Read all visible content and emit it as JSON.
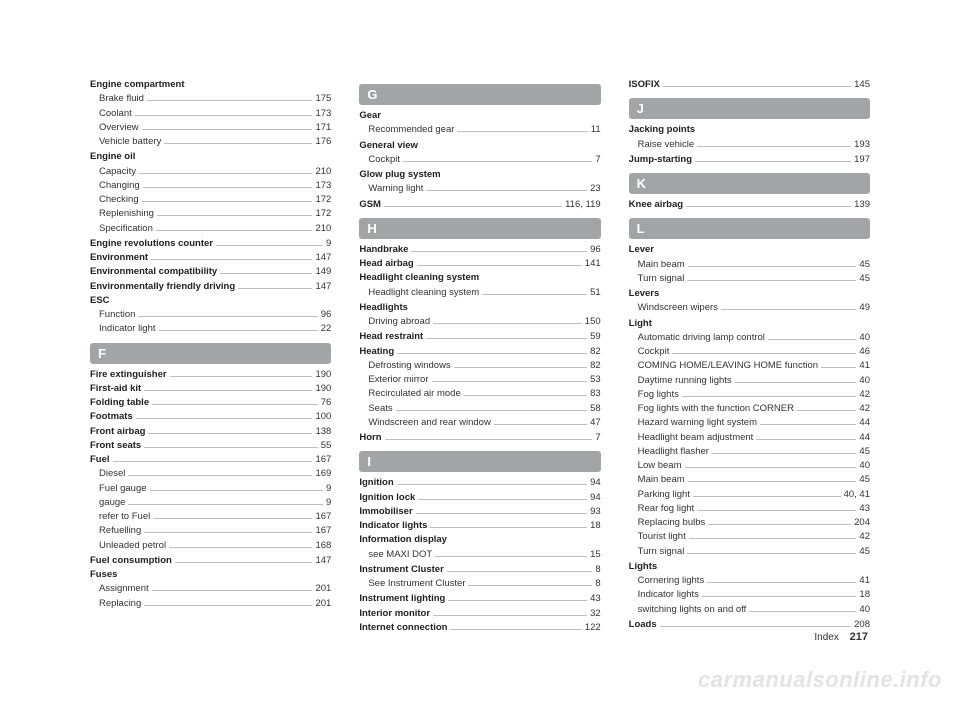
{
  "footer": {
    "label": "Index",
    "page": "217"
  },
  "watermark": "carmanualsonline.info",
  "columns": [
    [
      {
        "type": "group",
        "title": "Engine compartment",
        "items": [
          {
            "label": "Brake fluid",
            "page": "175"
          },
          {
            "label": "Coolant",
            "page": "173"
          },
          {
            "label": "Overview",
            "page": "171"
          },
          {
            "label": "Vehicle battery",
            "page": "176"
          }
        ]
      },
      {
        "type": "group",
        "title": "Engine oil",
        "items": [
          {
            "label": "Capacity",
            "page": "210"
          },
          {
            "label": "Changing",
            "page": "173"
          },
          {
            "label": "Checking",
            "page": "172"
          },
          {
            "label": "Replenishing",
            "page": "172"
          },
          {
            "label": "Specification",
            "page": "210"
          }
        ]
      },
      {
        "type": "entry",
        "bold": true,
        "label": "Engine revolutions counter",
        "page": "9"
      },
      {
        "type": "entry",
        "bold": true,
        "label": "Environment",
        "page": "147"
      },
      {
        "type": "entry",
        "bold": true,
        "label": "Environmental compatibility",
        "page": "149"
      },
      {
        "type": "entry",
        "bold": true,
        "label": "Environmentally friendly driving",
        "page": "147"
      },
      {
        "type": "group",
        "title": "ESC",
        "items": [
          {
            "label": "Function",
            "page": "96"
          },
          {
            "label": "Indicator light",
            "page": "22"
          }
        ]
      },
      {
        "type": "head",
        "label": "F"
      },
      {
        "type": "entry",
        "bold": true,
        "label": "Fire extinguisher",
        "page": "190"
      },
      {
        "type": "entry",
        "bold": true,
        "label": "First-aid kit",
        "page": "190"
      },
      {
        "type": "entry",
        "bold": true,
        "label": "Folding table",
        "page": "76"
      },
      {
        "type": "entry",
        "bold": true,
        "label": "Footmats",
        "page": "100"
      },
      {
        "type": "entry",
        "bold": true,
        "label": "Front airbag",
        "page": "138"
      },
      {
        "type": "entry",
        "bold": true,
        "label": "Front seats",
        "page": "55"
      },
      {
        "type": "group",
        "titleEntry": {
          "label": "Fuel",
          "page": "167"
        },
        "items": [
          {
            "label": "Diesel",
            "page": "169"
          },
          {
            "label": "Fuel gauge",
            "page": "9"
          },
          {
            "label": "gauge",
            "page": "9"
          },
          {
            "label": "refer to Fuel",
            "page": "167"
          },
          {
            "label": "Refuelling",
            "page": "167"
          },
          {
            "label": "Unleaded petrol",
            "page": "168"
          }
        ]
      },
      {
        "type": "entry",
        "bold": true,
        "label": "Fuel consumption",
        "page": "147"
      },
      {
        "type": "group",
        "title": "Fuses",
        "items": [
          {
            "label": "Assignment",
            "page": "201"
          },
          {
            "label": "Replacing",
            "page": "201"
          }
        ]
      }
    ],
    [
      {
        "type": "head",
        "label": "G"
      },
      {
        "type": "group",
        "title": "Gear",
        "items": [
          {
            "label": "Recommended gear",
            "page": "11"
          }
        ]
      },
      {
        "type": "group",
        "title": "General view",
        "items": [
          {
            "label": "Cockpit",
            "page": "7"
          }
        ]
      },
      {
        "type": "group",
        "title": "Glow plug system",
        "items": [
          {
            "label": "Warning light",
            "page": "23"
          }
        ]
      },
      {
        "type": "entry",
        "bold": true,
        "label": "GSM",
        "page": "116, 119"
      },
      {
        "type": "head",
        "label": "H"
      },
      {
        "type": "entry",
        "bold": true,
        "label": "Handbrake",
        "page": "96"
      },
      {
        "type": "entry",
        "bold": true,
        "label": "Head airbag",
        "page": "141"
      },
      {
        "type": "group",
        "title": "Headlight cleaning system",
        "items": [
          {
            "label": "Headlight cleaning system",
            "page": "51"
          }
        ]
      },
      {
        "type": "group",
        "title": "Headlights",
        "items": [
          {
            "label": "Driving abroad",
            "page": "150"
          }
        ]
      },
      {
        "type": "entry",
        "bold": true,
        "label": "Head restraint",
        "page": "59"
      },
      {
        "type": "group",
        "titleEntry": {
          "label": "Heating",
          "page": "82"
        },
        "items": [
          {
            "label": "Defrosting windows",
            "page": "82"
          },
          {
            "label": "Exterior mirror",
            "page": "53"
          },
          {
            "label": "Recirculated air mode",
            "page": "83"
          },
          {
            "label": "Seats",
            "page": "58"
          },
          {
            "label": "Windscreen and rear window",
            "page": "47"
          }
        ]
      },
      {
        "type": "entry",
        "bold": true,
        "label": "Horn",
        "page": "7"
      },
      {
        "type": "head",
        "label": "I"
      },
      {
        "type": "entry",
        "bold": true,
        "label": "Ignition",
        "page": "94"
      },
      {
        "type": "entry",
        "bold": true,
        "label": "Ignition lock",
        "page": "94"
      },
      {
        "type": "entry",
        "bold": true,
        "label": "Immobiliser",
        "page": "93"
      },
      {
        "type": "entry",
        "bold": true,
        "label": "Indicator lights",
        "page": "18"
      },
      {
        "type": "group",
        "title": "Information display",
        "items": [
          {
            "label": "see MAXI DOT",
            "page": "15"
          }
        ]
      },
      {
        "type": "group",
        "titleEntry": {
          "label": "Instrument Cluster",
          "page": "8"
        },
        "items": [
          {
            "label": "See Instrument Cluster",
            "page": "8"
          }
        ]
      },
      {
        "type": "entry",
        "bold": true,
        "label": "Instrument lighting",
        "page": "43"
      },
      {
        "type": "entry",
        "bold": true,
        "label": "Interior monitor",
        "page": "32"
      },
      {
        "type": "entry",
        "bold": true,
        "label": "Internet connection",
        "page": "122"
      }
    ],
    [
      {
        "type": "entry",
        "bold": true,
        "label": "ISOFIX",
        "page": "145"
      },
      {
        "type": "head",
        "label": "J"
      },
      {
        "type": "group",
        "title": "Jacking points",
        "items": [
          {
            "label": "Raise vehicle",
            "page": "193"
          }
        ]
      },
      {
        "type": "entry",
        "bold": true,
        "label": "Jump-starting",
        "page": "197"
      },
      {
        "type": "head",
        "label": "K"
      },
      {
        "type": "entry",
        "bold": true,
        "label": "Knee airbag",
        "page": "139"
      },
      {
        "type": "head",
        "label": "L"
      },
      {
        "type": "group",
        "title": "Lever",
        "items": [
          {
            "label": "Main beam",
            "page": "45"
          },
          {
            "label": "Turn signal",
            "page": "45"
          }
        ]
      },
      {
        "type": "group",
        "title": "Levers",
        "items": [
          {
            "label": "Windscreen wipers",
            "page": "49"
          }
        ]
      },
      {
        "type": "group",
        "title": "Light",
        "items": [
          {
            "label": "Automatic driving lamp control",
            "page": "40"
          },
          {
            "label": "Cockpit",
            "page": "46"
          },
          {
            "label": "COMING HOME/LEAVING HOME function",
            "page": "41"
          },
          {
            "label": "Daytime running lights",
            "page": "40"
          },
          {
            "label": "Fog lights",
            "page": "42"
          },
          {
            "label": "Fog lights with the function CORNER",
            "page": "42"
          },
          {
            "label": "Hazard warning light system",
            "page": "44"
          },
          {
            "label": "Headlight beam adjustment",
            "page": "44"
          },
          {
            "label": "Headlight flasher",
            "page": "45"
          },
          {
            "label": "Low beam",
            "page": "40"
          },
          {
            "label": "Main beam",
            "page": "45"
          },
          {
            "label": "Parking light",
            "page": "40, 41"
          },
          {
            "label": "Rear fog light",
            "page": "43"
          },
          {
            "label": "Replacing bulbs",
            "page": "204"
          },
          {
            "label": "Tourist light",
            "page": "42"
          },
          {
            "label": "Turn signal",
            "page": "45"
          }
        ]
      },
      {
        "type": "group",
        "title": "Lights",
        "items": [
          {
            "label": "Cornering lights",
            "page": "41"
          },
          {
            "label": "Indicator lights",
            "page": "18"
          },
          {
            "label": "switching lights on and off",
            "page": "40"
          }
        ]
      },
      {
        "type": "entry",
        "bold": true,
        "label": "Loads",
        "page": "208"
      }
    ]
  ]
}
